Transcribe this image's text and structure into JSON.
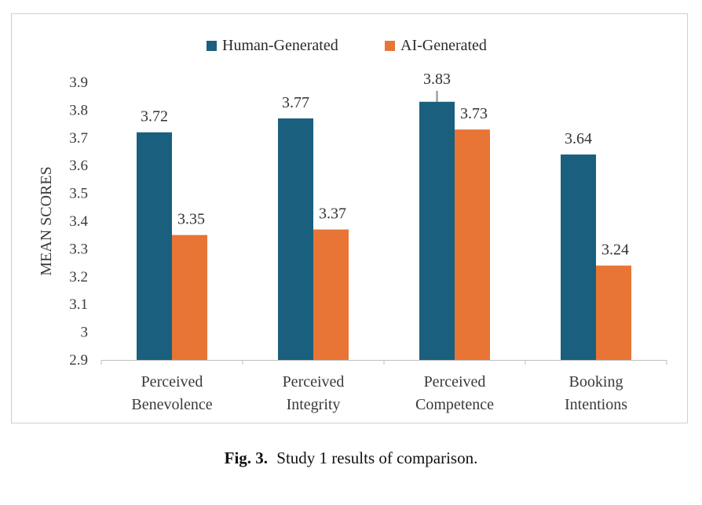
{
  "chart_data": {
    "type": "bar",
    "title": "",
    "xlabel": "",
    "ylabel": "MEAN SCORES",
    "ylim": [
      2.9,
      3.9
    ],
    "yticks": [
      "3.9",
      "3.8",
      "3.7",
      "3.6",
      "3.5",
      "3.4",
      "3.3",
      "3.2",
      "3.1",
      "3",
      "2.9"
    ],
    "legend_position": "top-center",
    "categories": [
      [
        "Perceived",
        "Benevolence"
      ],
      [
        "Perceived",
        "Integrity"
      ],
      [
        "Perceived",
        "Competence"
      ],
      [
        "Booking",
        "Intentions"
      ]
    ],
    "series": [
      {
        "name": "Human-Generated",
        "color": "#1a5f7e",
        "values": [
          3.72,
          3.77,
          3.83,
          3.64
        ],
        "labels": [
          "3.72",
          "3.77",
          "3.83",
          "3.64"
        ]
      },
      {
        "name": "AI-Generated",
        "color": "#e87535",
        "values": [
          3.35,
          3.37,
          3.73,
          3.24
        ],
        "labels": [
          "3.35",
          "3.37",
          "3.73",
          "3.24"
        ]
      }
    ]
  },
  "caption": {
    "label": "Fig. 3.",
    "text": "Study 1 results of comparison."
  }
}
